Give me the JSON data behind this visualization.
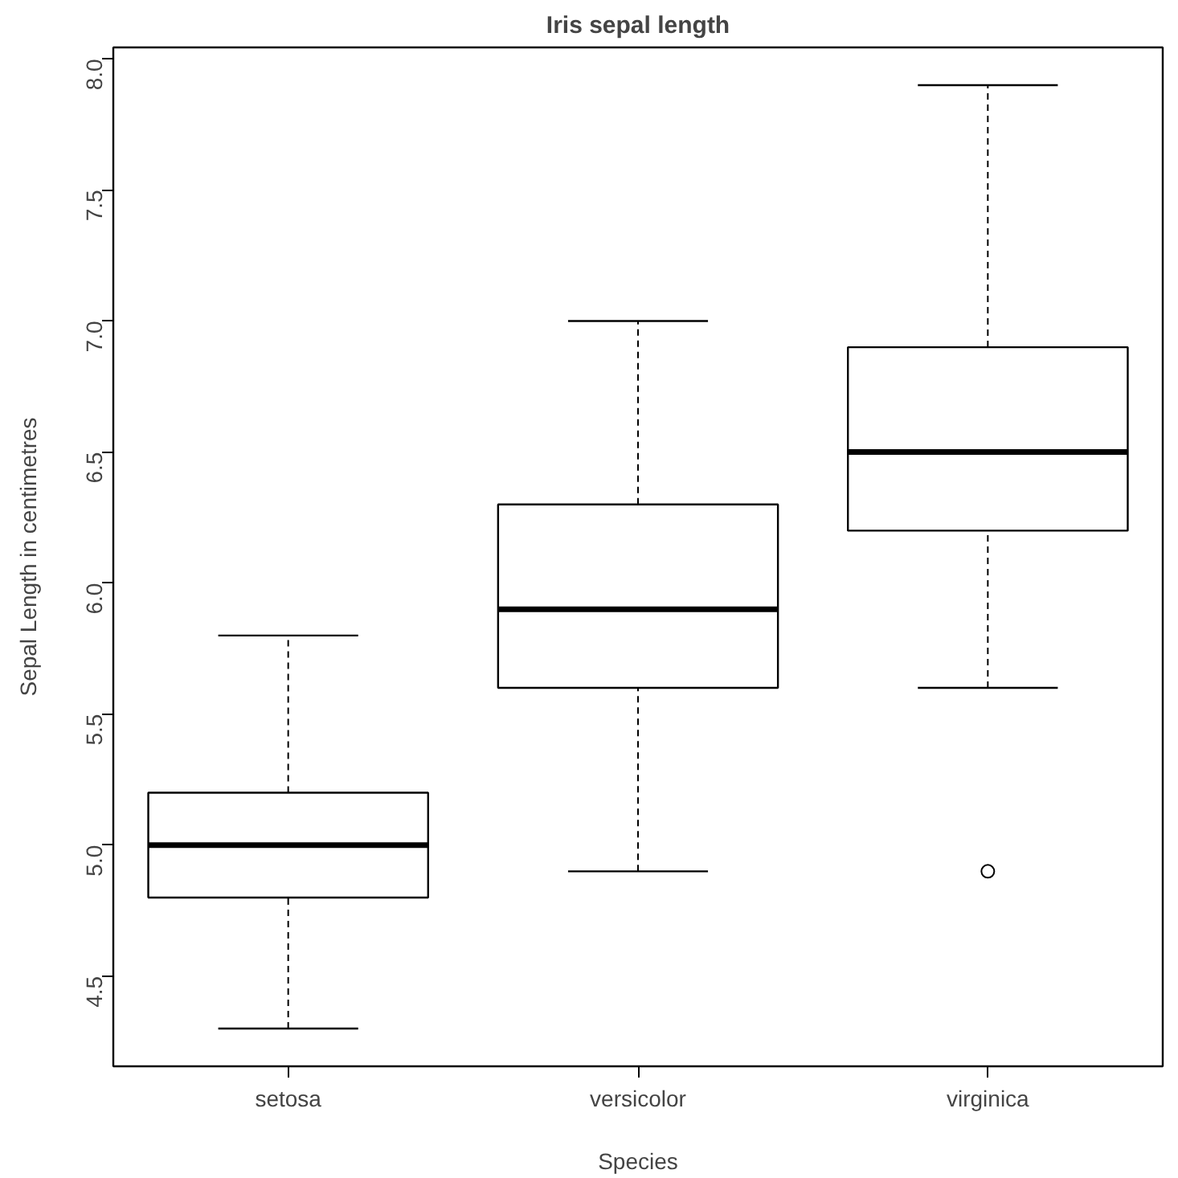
{
  "chart_data": {
    "type": "box",
    "title": "Iris sepal length",
    "xlabel": "Species",
    "ylabel": "Sepal Length in centimetres",
    "categories": [
      "setosa",
      "versicolor",
      "virginica"
    ],
    "boxes": [
      {
        "low": 4.3,
        "q1": 4.8,
        "median": 5.0,
        "q3": 5.2,
        "high": 5.8
      },
      {
        "low": 4.9,
        "q1": 5.6,
        "median": 5.9,
        "q3": 6.3,
        "high": 7.0
      },
      {
        "low": 5.6,
        "q1": 6.2,
        "median": 6.5,
        "q3": 6.9,
        "high": 7.9,
        "outliers": [
          4.9
        ]
      }
    ],
    "ylim": [
      4.156,
      8.044
    ],
    "yticks": [
      {
        "value": 4.5,
        "label": "4.5"
      },
      {
        "value": 5.0,
        "label": "5.0"
      },
      {
        "value": 5.5,
        "label": "5.5"
      },
      {
        "value": 6.0,
        "label": "6.0"
      },
      {
        "value": 6.5,
        "label": "6.5"
      },
      {
        "value": 7.0,
        "label": "7.0"
      },
      {
        "value": 7.5,
        "label": "7.5"
      },
      {
        "value": 8.0,
        "label": "8.0"
      }
    ],
    "grid": false
  }
}
